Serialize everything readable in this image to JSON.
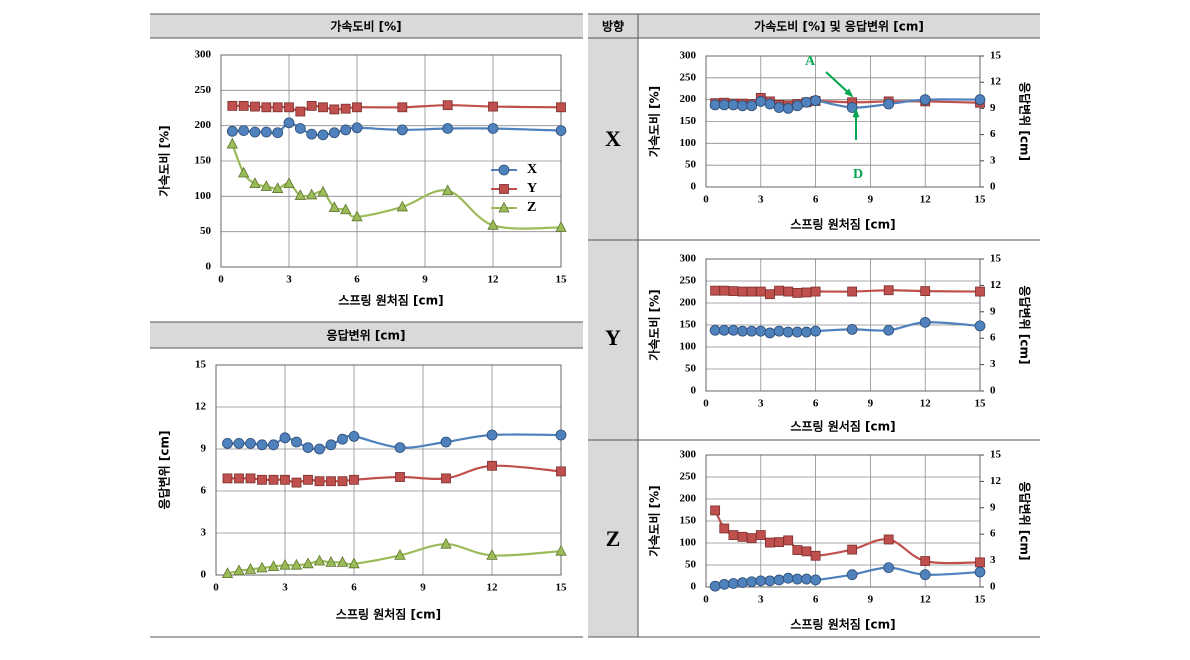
{
  "table": {
    "headers": [
      "방향",
      "가속도비 [%] 및 응답변위 [cm]"
    ],
    "rows": [
      "X",
      "Y",
      "Z"
    ]
  },
  "chart_data": [
    {
      "type": "line",
      "title": "가속도비 [%]",
      "xlabel": "스프링 원처짐 [cm]",
      "ylabel": "가속도비 [%]",
      "x": [
        0.5,
        1,
        1.5,
        2,
        2.5,
        3,
        3.5,
        4,
        4.5,
        5,
        5.5,
        6,
        8,
        10,
        12,
        15
      ],
      "xlim": [
        0,
        15
      ],
      "xticks": [
        0,
        3,
        6,
        9,
        12,
        15
      ],
      "ylim": [
        0,
        300
      ],
      "yticks": [
        0,
        50,
        100,
        150,
        200,
        250,
        300
      ],
      "grid": true,
      "legend": "right",
      "series": [
        {
          "name": "X",
          "color": "#4f81bd",
          "marker": "circle",
          "values": [
            192,
            193,
            191,
            191,
            190,
            204,
            196,
            188,
            187,
            190,
            194,
            197,
            194,
            196,
            196,
            193
          ]
        },
        {
          "name": "Y",
          "color": "#c0504d",
          "marker": "square",
          "values": [
            228,
            228,
            227,
            226,
            226,
            226,
            220,
            228,
            226,
            223,
            224,
            226,
            226,
            229,
            227,
            226
          ]
        },
        {
          "name": "Z",
          "color": "#9bbb59",
          "marker": "triangle",
          "values": [
            174,
            133,
            118,
            114,
            111,
            118,
            101,
            102,
            106,
            84,
            81,
            71,
            85,
            108,
            59,
            56
          ]
        }
      ]
    },
    {
      "type": "line",
      "title": "응답변위 [cm]",
      "xlabel": "스프링 원처짐 [cm]",
      "ylabel": "응답변위 [cm]",
      "x": [
        0.5,
        1,
        1.5,
        2,
        2.5,
        3,
        3.5,
        4,
        4.5,
        5,
        5.5,
        6,
        8,
        10,
        12,
        15
      ],
      "xlim": [
        0,
        15
      ],
      "xticks": [
        0,
        3,
        6,
        9,
        12,
        15
      ],
      "ylim": [
        0,
        15
      ],
      "yticks": [
        0,
        3,
        6,
        9,
        12,
        15
      ],
      "grid": true,
      "series": [
        {
          "color": "#4f81bd",
          "marker": "circle",
          "values": [
            9.4,
            9.4,
            9.4,
            9.3,
            9.3,
            9.8,
            9.5,
            9.1,
            9.0,
            9.3,
            9.7,
            9.9,
            9.1,
            9.5,
            10.0,
            10.0
          ]
        },
        {
          "color": "#c0504d",
          "marker": "square",
          "values": [
            6.9,
            6.9,
            6.9,
            6.8,
            6.8,
            6.8,
            6.6,
            6.8,
            6.7,
            6.7,
            6.7,
            6.8,
            7.0,
            6.9,
            7.8,
            7.4
          ]
        },
        {
          "color": "#9bbb59",
          "marker": "triangle",
          "values": [
            0.1,
            0.3,
            0.4,
            0.5,
            0.6,
            0.7,
            0.7,
            0.8,
            1.0,
            0.9,
            0.9,
            0.8,
            1.4,
            2.2,
            1.4,
            1.7
          ]
        }
      ]
    },
    {
      "type": "line",
      "xlabel": "스프링 원처짐 [cm]",
      "ylabel": "가속도비 [%]",
      "y2label": "응답변위 [cm]",
      "x": [
        0.5,
        1,
        1.5,
        2,
        2.5,
        3,
        3.5,
        4,
        4.5,
        5,
        5.5,
        6,
        8,
        10,
        12,
        15
      ],
      "xlim": [
        0,
        15
      ],
      "xticks": [
        0,
        3,
        6,
        9,
        12,
        15
      ],
      "ylim": [
        0,
        300
      ],
      "yticks": [
        0,
        50,
        100,
        150,
        200,
        250,
        300
      ],
      "y2lim": [
        0,
        15
      ],
      "y2ticks": [
        0,
        3,
        6,
        9,
        12,
        15
      ],
      "grid": true,
      "annotations": [
        "A",
        "D"
      ],
      "series": [
        {
          "color": "#c0504d",
          "marker": "square",
          "values": [
            192,
            193,
            191,
            191,
            190,
            204,
            196,
            188,
            187,
            190,
            194,
            197,
            194,
            196,
            196,
            193
          ]
        },
        {
          "color": "#4f81bd",
          "marker": "circle",
          "axis": "y2",
          "values": [
            9.4,
            9.4,
            9.4,
            9.3,
            9.3,
            9.8,
            9.5,
            9.1,
            9.0,
            9.3,
            9.7,
            9.9,
            9.1,
            9.5,
            10.0,
            10.0
          ]
        }
      ]
    },
    {
      "type": "line",
      "xlabel": "스프링 원서짐 [cm]",
      "ylabel": "가속도비 [%]",
      "y2label": "응답변위 [cm]",
      "x": [
        0.5,
        1,
        1.5,
        2,
        2.5,
        3,
        3.5,
        4,
        4.5,
        5,
        5.5,
        6,
        8,
        10,
        12,
        15
      ],
      "xlim": [
        0,
        15
      ],
      "xticks": [
        0,
        3,
        6,
        9,
        12,
        15
      ],
      "ylim": [
        0,
        300
      ],
      "yticks": [
        0,
        50,
        100,
        150,
        200,
        250,
        300
      ],
      "y2lim": [
        0,
        15
      ],
      "y2ticks": [
        0,
        3,
        6,
        9,
        12,
        15
      ],
      "grid": true,
      "series": [
        {
          "color": "#c0504d",
          "marker": "square",
          "values": [
            228,
            228,
            227,
            226,
            226,
            226,
            220,
            228,
            226,
            223,
            224,
            226,
            226,
            229,
            227,
            226
          ]
        },
        {
          "color": "#4f81bd",
          "marker": "circle",
          "axis": "y2",
          "values": [
            6.9,
            6.9,
            6.9,
            6.8,
            6.8,
            6.8,
            6.6,
            6.8,
            6.7,
            6.7,
            6.7,
            6.8,
            7.0,
            6.9,
            7.8,
            7.4
          ]
        }
      ]
    },
    {
      "type": "line",
      "xlabel": "스프링 원처짐 [cm]",
      "ylabel": "가속도비 [%]",
      "y2label": "응답변위 [cm]",
      "x": [
        0.5,
        1,
        1.5,
        2,
        2.5,
        3,
        3.5,
        4,
        4.5,
        5,
        5.5,
        6,
        8,
        10,
        12,
        15
      ],
      "xlim": [
        0,
        15
      ],
      "xticks": [
        0,
        3,
        6,
        9,
        12,
        15
      ],
      "ylim": [
        0,
        300
      ],
      "yticks": [
        0,
        50,
        100,
        150,
        200,
        250,
        300
      ],
      "y2lim": [
        0,
        15
      ],
      "y2ticks": [
        0,
        3,
        6,
        9,
        12,
        15
      ],
      "grid": true,
      "series": [
        {
          "color": "#c0504d",
          "marker": "square",
          "values": [
            174,
            133,
            118,
            114,
            111,
            118,
            101,
            102,
            106,
            84,
            81,
            71,
            85,
            108,
            59,
            56
          ]
        },
        {
          "color": "#4f81bd",
          "marker": "circle",
          "axis": "y2",
          "values": [
            0.1,
            0.3,
            0.4,
            0.5,
            0.6,
            0.7,
            0.7,
            0.8,
            1.0,
            0.9,
            0.9,
            0.8,
            1.4,
            2.2,
            1.4,
            1.7
          ]
        }
      ]
    }
  ]
}
